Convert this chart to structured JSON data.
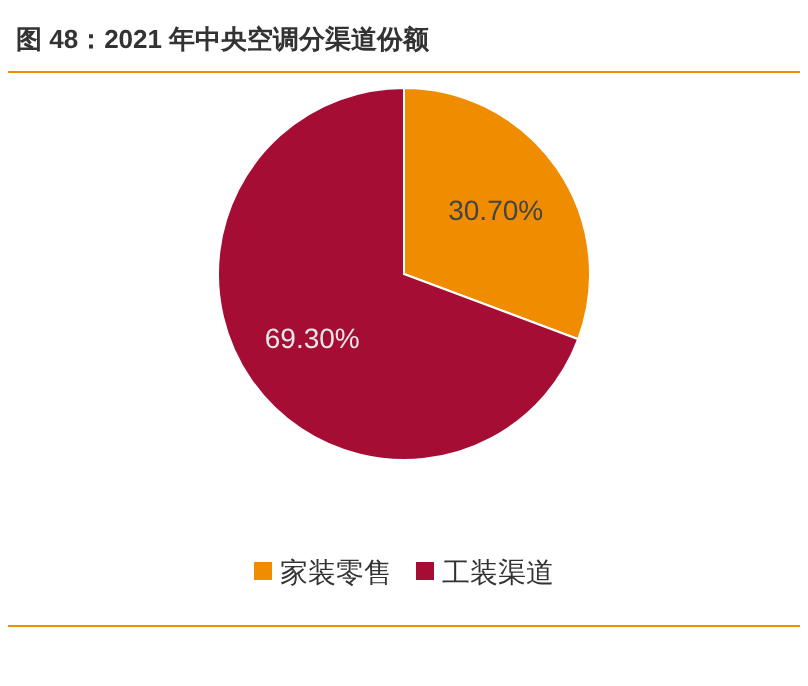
{
  "chart_data": {
    "type": "pie",
    "title": "图 48：2021 年中央空调分渠道份额",
    "categories": [
      "家装零售",
      "工装渠道"
    ],
    "values": [
      30.7,
      69.3
    ],
    "value_labels": [
      "30.70%",
      "69.30%"
    ],
    "colors": [
      "#f08c00",
      "#a50d34"
    ],
    "legend": "bottom"
  }
}
